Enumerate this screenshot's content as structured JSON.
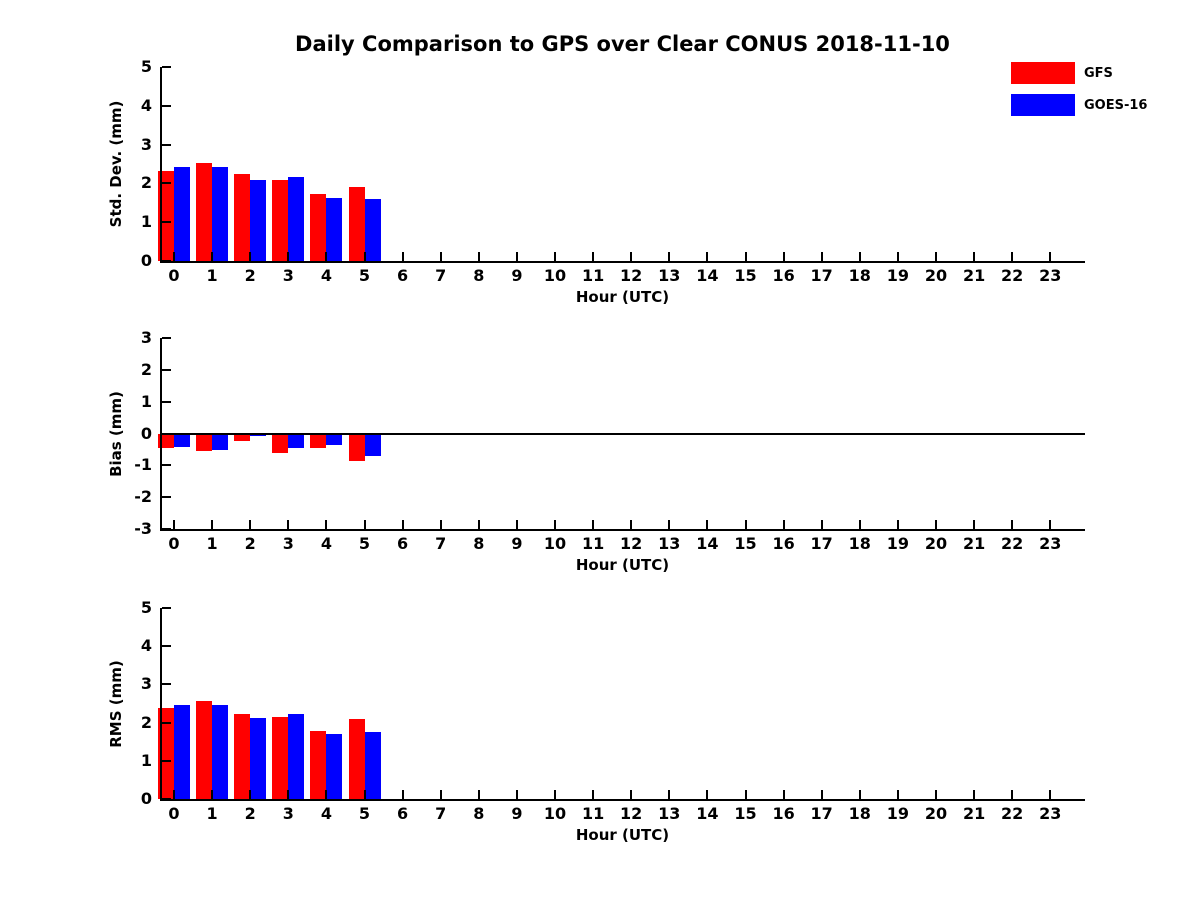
{
  "title": "Daily Comparison to GPS over Clear CONUS 2018-11-10",
  "legend": {
    "position": "top-right",
    "items": [
      {
        "label": "GFS",
        "color": "#ff0000"
      },
      {
        "label": "GOES-16",
        "color": "#0000ff"
      }
    ]
  },
  "chart_data": [
    {
      "type": "bar",
      "panel": "std-dev",
      "title": "",
      "xlabel": "Hour (UTC)",
      "ylabel": "Std. Dev. (mm)",
      "ylim": [
        0,
        5
      ],
      "yticks": [
        0,
        1,
        2,
        3,
        4,
        5
      ],
      "grid": false,
      "legend_position": "top-right-outside",
      "categories": [
        "0",
        "1",
        "2",
        "3",
        "4",
        "5",
        "6",
        "7",
        "8",
        "9",
        "10",
        "11",
        "12",
        "13",
        "14",
        "15",
        "16",
        "17",
        "18",
        "19",
        "20",
        "21",
        "22",
        "23"
      ],
      "series": [
        {
          "name": "GFS",
          "color": "#ff0000",
          "values": [
            2.33,
            2.52,
            2.24,
            2.09,
            1.73,
            1.92
          ]
        },
        {
          "name": "GOES-16",
          "color": "#0000ff",
          "values": [
            2.43,
            2.42,
            2.1,
            2.17,
            1.62,
            1.59
          ]
        }
      ]
    },
    {
      "type": "bar",
      "panel": "bias",
      "title": "",
      "xlabel": "Hour (UTC)",
      "ylabel": "Bias (mm)",
      "ylim": [
        -3,
        3
      ],
      "yticks": [
        -3,
        -2,
        -1,
        0,
        1,
        2,
        3
      ],
      "zero_line": true,
      "grid": false,
      "categories": [
        "0",
        "1",
        "2",
        "3",
        "4",
        "5",
        "6",
        "7",
        "8",
        "9",
        "10",
        "11",
        "12",
        "13",
        "14",
        "15",
        "16",
        "17",
        "18",
        "19",
        "20",
        "21",
        "22",
        "23"
      ],
      "series": [
        {
          "name": "GFS",
          "color": "#ff0000",
          "values": [
            -0.45,
            -0.54,
            -0.24,
            -0.61,
            -0.47,
            -0.86
          ]
        },
        {
          "name": "GOES-16",
          "color": "#0000ff",
          "values": [
            -0.41,
            -0.52,
            -0.09,
            -0.47,
            -0.37,
            -0.72
          ]
        }
      ]
    },
    {
      "type": "bar",
      "panel": "rms",
      "title": "",
      "xlabel": "Hour (UTC)",
      "ylabel": "RMS (mm)",
      "ylim": [
        0,
        5
      ],
      "yticks": [
        0,
        1,
        2,
        3,
        4,
        5
      ],
      "grid": false,
      "categories": [
        "0",
        "1",
        "2",
        "3",
        "4",
        "5",
        "6",
        "7",
        "8",
        "9",
        "10",
        "11",
        "12",
        "13",
        "14",
        "15",
        "16",
        "17",
        "18",
        "19",
        "20",
        "21",
        "22",
        "23"
      ],
      "series": [
        {
          "name": "GFS",
          "color": "#ff0000",
          "values": [
            2.37,
            2.56,
            2.23,
            2.15,
            1.77,
            2.09
          ]
        },
        {
          "name": "GOES-16",
          "color": "#0000ff",
          "values": [
            2.45,
            2.45,
            2.11,
            2.23,
            1.69,
            1.75
          ]
        }
      ]
    }
  ]
}
